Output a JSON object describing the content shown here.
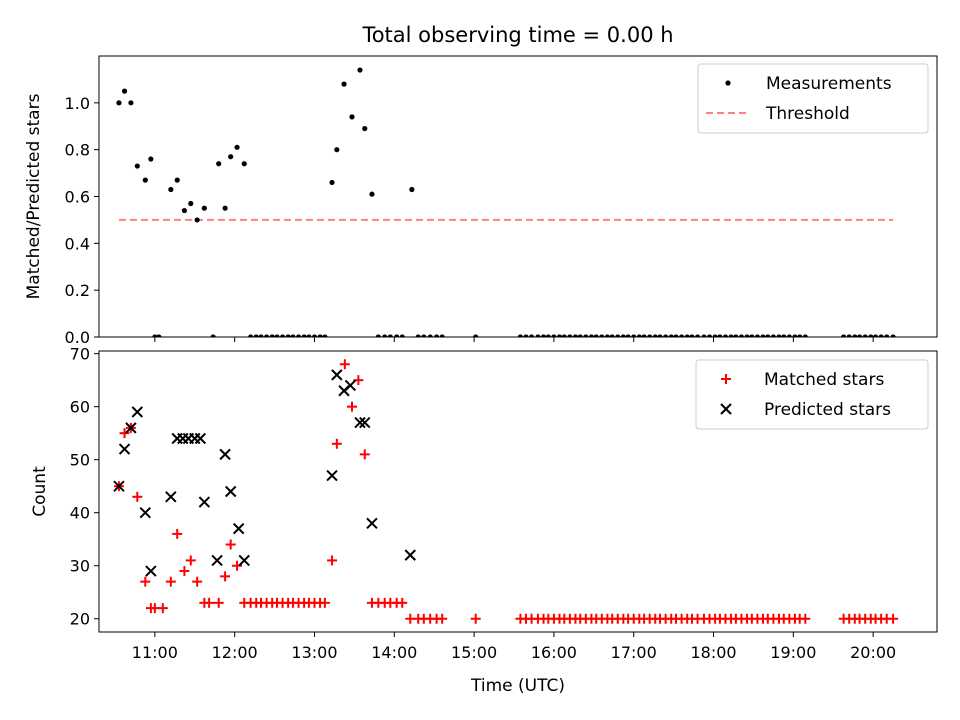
{
  "title": "Total observing time = 0.00 h",
  "colors": {
    "matched": "#ff0000",
    "predicted": "#000000",
    "threshold": "#ff8080",
    "measurement": "#000000"
  },
  "chart_data": [
    {
      "type": "scatter",
      "ylabel": "Matched/Predicted stars",
      "ylim": [
        0,
        1.2
      ],
      "yticks": [
        "0.0",
        "0.2",
        "0.4",
        "0.6",
        "0.8",
        "1.0"
      ],
      "ytick_values": [
        0,
        0.2,
        0.4,
        0.6,
        0.8,
        1.0
      ],
      "threshold": {
        "name": "Threshold",
        "y": 0.5,
        "x_start": 10.55,
        "x_end": 20.25
      },
      "legend": [
        "Measurements",
        "Threshold"
      ],
      "legend_position": "top-right",
      "series": [
        {
          "name": "Measurements",
          "x": [
            10.55,
            10.62,
            10.7,
            10.78,
            10.88,
            10.95,
            11.0,
            11.05,
            11.2,
            11.28,
            11.37,
            11.45,
            11.53,
            11.62,
            11.73,
            11.8,
            11.88,
            11.95,
            12.03,
            12.12,
            12.2,
            12.27,
            12.33,
            12.4,
            12.47,
            12.53,
            12.6,
            12.67,
            12.73,
            12.8,
            12.87,
            12.93,
            13.0,
            13.07,
            13.13,
            13.22,
            13.28,
            13.37,
            13.47,
            13.57,
            13.63,
            13.72,
            13.8,
            13.88,
            13.95,
            14.03,
            14.1,
            14.22,
            14.3,
            14.37,
            14.45,
            14.53,
            14.6,
            15.02,
            15.58,
            15.65,
            15.72,
            15.8,
            15.87,
            15.93,
            16.0,
            16.07,
            16.13,
            16.2,
            16.27,
            16.33,
            16.4,
            16.47,
            16.53,
            16.6,
            16.67,
            16.73,
            16.8,
            16.87,
            16.93,
            17.0,
            17.07,
            17.13,
            17.2,
            17.27,
            17.33,
            17.4,
            17.47,
            17.53,
            17.6,
            17.67,
            17.73,
            17.8,
            17.88,
            17.95,
            18.02,
            18.08,
            18.15,
            18.22,
            18.28,
            18.35,
            18.42,
            18.48,
            18.55,
            18.62,
            18.68,
            18.75,
            18.82,
            18.88,
            18.95,
            19.02,
            19.08,
            19.15,
            19.63,
            19.7,
            19.77,
            19.83,
            19.9,
            19.97,
            20.03,
            20.1,
            20.17,
            20.25
          ],
          "y": [
            1.0,
            1.05,
            1.0,
            0.73,
            0.67,
            0.76,
            0.0,
            0.0,
            0.63,
            0.67,
            0.54,
            0.57,
            0.5,
            0.55,
            0.0,
            0.74,
            0.55,
            0.77,
            0.81,
            0.74,
            0.0,
            0.0,
            0.0,
            0.0,
            0.0,
            0.0,
            0.0,
            0.0,
            0.0,
            0.0,
            0.0,
            0.0,
            0.0,
            0.0,
            0.0,
            0.66,
            0.8,
            1.08,
            0.94,
            1.14,
            0.89,
            0.61,
            0.0,
            0.0,
            0.0,
            0.0,
            0.0,
            0.63,
            0.0,
            0.0,
            0.0,
            0.0,
            0.0,
            0.0,
            0.0,
            0.0,
            0.0,
            0.0,
            0.0,
            0.0,
            0.0,
            0.0,
            0.0,
            0.0,
            0.0,
            0.0,
            0.0,
            0.0,
            0.0,
            0.0,
            0.0,
            0.0,
            0.0,
            0.0,
            0.0,
            0.0,
            0.0,
            0.0,
            0.0,
            0.0,
            0.0,
            0.0,
            0.0,
            0.0,
            0.0,
            0.0,
            0.0,
            0.0,
            0.0,
            0.0,
            0.0,
            0.0,
            0.0,
            0.0,
            0.0,
            0.0,
            0.0,
            0.0,
            0.0,
            0.0,
            0.0,
            0.0,
            0.0,
            0.0,
            0.0,
            0.0,
            0.0,
            0.0,
            0.0,
            0.0,
            0.0,
            0.0,
            0.0,
            0.0,
            0.0,
            0.0,
            0.0,
            0.0
          ]
        }
      ]
    },
    {
      "type": "scatter",
      "xlabel": "Time (UTC)",
      "ylabel": "Count",
      "ylim": [
        17.5,
        70.5
      ],
      "yticks": [
        "20",
        "30",
        "40",
        "50",
        "60",
        "70"
      ],
      "ytick_values": [
        20,
        30,
        40,
        50,
        60,
        70
      ],
      "xticks": [
        "11:00",
        "12:00",
        "13:00",
        "14:00",
        "15:00",
        "16:00",
        "17:00",
        "18:00",
        "19:00",
        "20:00"
      ],
      "xtick_values": [
        11,
        12,
        13,
        14,
        15,
        16,
        17,
        18,
        19,
        20
      ],
      "xlim": [
        10.3,
        20.8
      ],
      "legend": [
        "Matched stars",
        "Predicted stars"
      ],
      "legend_position": "top-right",
      "series": [
        {
          "name": "Matched stars",
          "x": [
            10.55,
            10.62,
            10.7,
            10.78,
            10.88,
            10.95,
            11.0,
            11.1,
            11.2,
            11.28,
            11.37,
            11.45,
            11.53,
            11.62,
            11.68,
            11.8,
            11.88,
            11.95,
            12.03,
            12.12,
            12.2,
            12.27,
            12.33,
            12.4,
            12.47,
            12.53,
            12.6,
            12.67,
            12.73,
            12.8,
            12.87,
            12.93,
            13.0,
            13.07,
            13.13,
            13.22,
            13.28,
            13.38,
            13.47,
            13.55,
            13.63,
            13.72,
            13.8,
            13.88,
            13.95,
            14.03,
            14.1,
            14.2,
            14.3,
            14.37,
            14.45,
            14.53,
            14.6,
            15.02,
            15.58,
            15.65,
            15.72,
            15.8,
            15.87,
            15.93,
            16.0,
            16.07,
            16.13,
            16.2,
            16.27,
            16.33,
            16.4,
            16.47,
            16.53,
            16.6,
            16.67,
            16.73,
            16.8,
            16.87,
            16.93,
            17.0,
            17.07,
            17.13,
            17.2,
            17.27,
            17.33,
            17.4,
            17.47,
            17.53,
            17.6,
            17.67,
            17.73,
            17.8,
            17.88,
            17.95,
            18.02,
            18.08,
            18.15,
            18.22,
            18.28,
            18.35,
            18.42,
            18.48,
            18.55,
            18.62,
            18.68,
            18.75,
            18.82,
            18.88,
            18.95,
            19.02,
            19.08,
            19.15,
            19.63,
            19.7,
            19.77,
            19.83,
            19.9,
            19.97,
            20.03,
            20.1,
            20.17,
            20.25
          ],
          "y": [
            45,
            55,
            56,
            43,
            27,
            22,
            22,
            22,
            27,
            36,
            29,
            31,
            27,
            23,
            23,
            23,
            28,
            34,
            30,
            23,
            23,
            23,
            23,
            23,
            23,
            23,
            23,
            23,
            23,
            23,
            23,
            23,
            23,
            23,
            23,
            31,
            53,
            68,
            60,
            65,
            51,
            23,
            23,
            23,
            23,
            23,
            23,
            20,
            20,
            20,
            20,
            20,
            20,
            20,
            20,
            20,
            20,
            20,
            20,
            20,
            20,
            20,
            20,
            20,
            20,
            20,
            20,
            20,
            20,
            20,
            20,
            20,
            20,
            20,
            20,
            20,
            20,
            20,
            20,
            20,
            20,
            20,
            20,
            20,
            20,
            20,
            20,
            20,
            20,
            20,
            20,
            20,
            20,
            20,
            20,
            20,
            20,
            20,
            20,
            20,
            20,
            20,
            20,
            20,
            20,
            20,
            20,
            20,
            20,
            20,
            20,
            20,
            20,
            20,
            20,
            20,
            20,
            20
          ]
        },
        {
          "name": "Predicted stars",
          "x": [
            10.55,
            10.62,
            10.7,
            10.78,
            10.88,
            10.95,
            11.2,
            11.28,
            11.35,
            11.42,
            11.5,
            11.57,
            11.62,
            11.78,
            11.88,
            11.95,
            12.05,
            12.12,
            13.22,
            13.28,
            13.37,
            13.45,
            13.57,
            13.63,
            13.72,
            14.2
          ],
          "y": [
            45,
            52,
            56,
            59,
            40,
            29,
            43,
            54,
            54,
            54,
            54,
            54,
            42,
            31,
            51,
            44,
            37,
            31,
            47,
            66,
            63,
            64,
            57,
            57,
            38,
            32
          ]
        }
      ]
    }
  ]
}
